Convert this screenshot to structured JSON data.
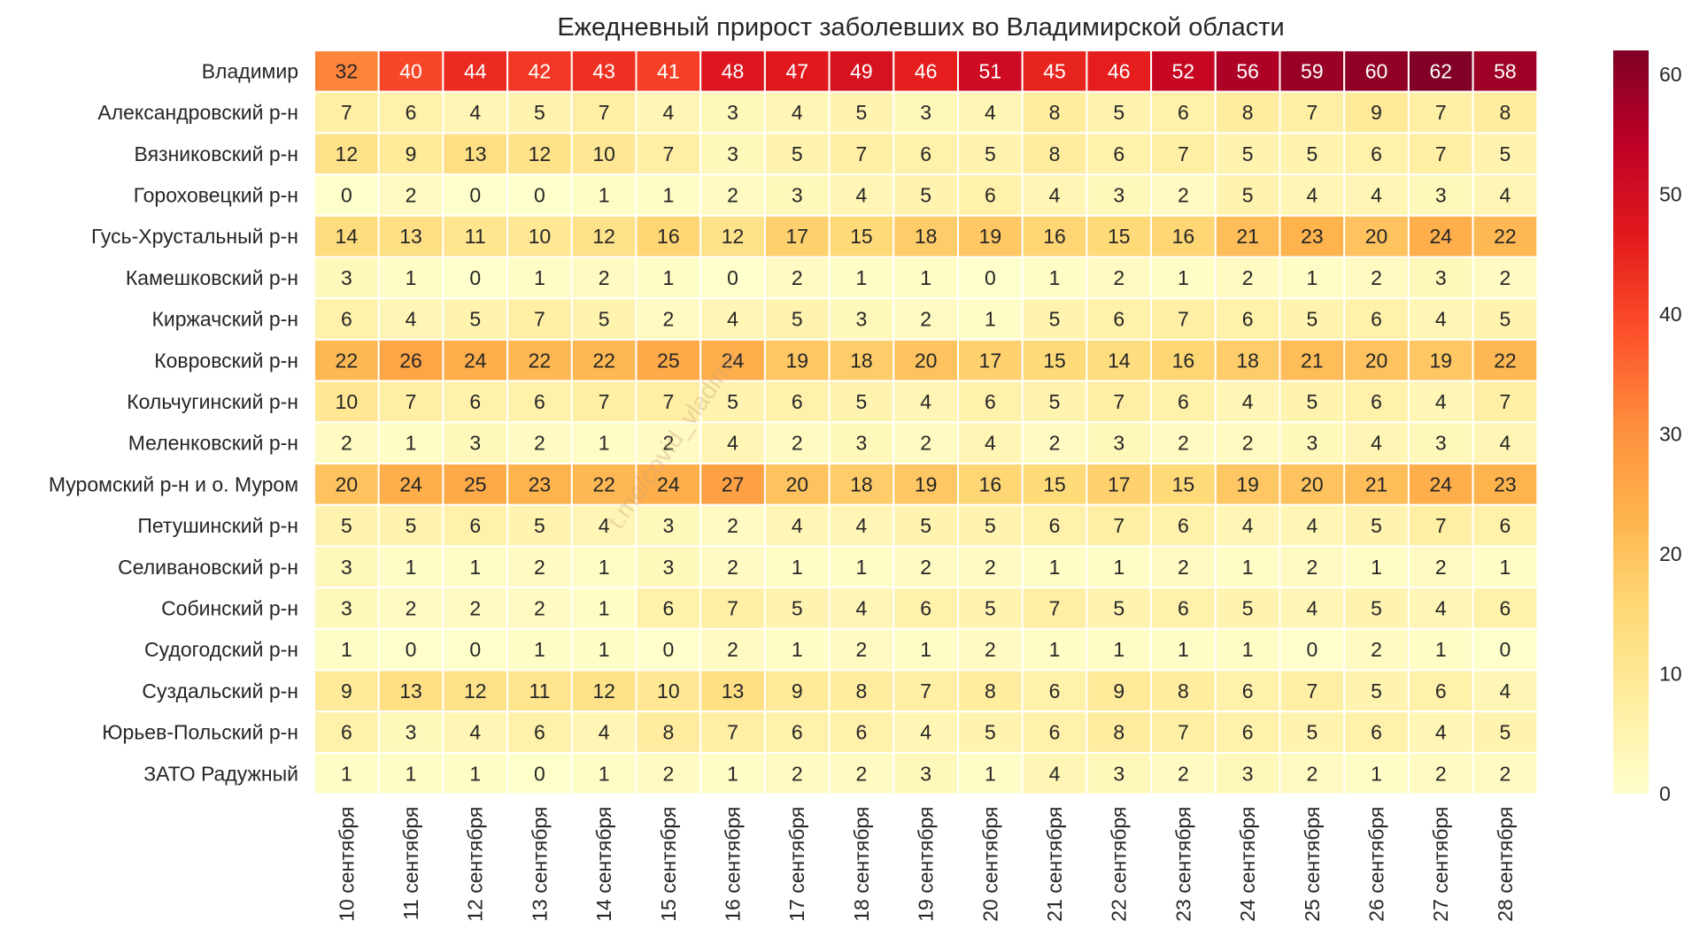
{
  "chart_data": {
    "type": "heatmap",
    "title": "Ежедневный прирост заболевших во Владимирской области",
    "rows": [
      "Владимир",
      "Александровский р-н",
      "Вязниковский р-н",
      "Гороховецкий р-н",
      "Гусь-Хрустальный р-н",
      "Камешковский р-н",
      "Киржачский р-н",
      "Ковровский р-н",
      "Кольчугинский р-н",
      "Меленковский р-н",
      "Муромский р-н и о. Муром",
      "Петушинский р-н",
      "Селивановский р-н",
      "Собинский р-н",
      "Судогодский р-н",
      "Суздальский р-н",
      "Юрьев-Польский р-н",
      "ЗАТО Радужный"
    ],
    "columns": [
      "10 сентября",
      "11 сентября",
      "12 сентября",
      "13 сентября",
      "14 сентября",
      "15 сентября",
      "16 сентября",
      "17 сентября",
      "18 сентября",
      "19 сентября",
      "20 сентября",
      "21 сентября",
      "22 сентября",
      "23 сентября",
      "24 сентября",
      "25 сентября",
      "26 сентября",
      "27 сентября",
      "28 сентября"
    ],
    "values": [
      [
        32,
        40,
        44,
        42,
        43,
        41,
        48,
        47,
        49,
        46,
        51,
        45,
        46,
        52,
        56,
        59,
        60,
        62,
        58
      ],
      [
        7,
        6,
        4,
        5,
        7,
        4,
        3,
        4,
        5,
        3,
        4,
        8,
        5,
        6,
        8,
        7,
        9,
        7,
        8
      ],
      [
        12,
        9,
        13,
        12,
        10,
        7,
        3,
        5,
        7,
        6,
        5,
        8,
        6,
        7,
        5,
        5,
        6,
        7,
        5
      ],
      [
        0,
        2,
        0,
        0,
        1,
        1,
        2,
        3,
        4,
        5,
        6,
        4,
        3,
        2,
        5,
        4,
        4,
        3,
        4
      ],
      [
        14,
        13,
        11,
        10,
        12,
        16,
        12,
        17,
        15,
        18,
        19,
        16,
        15,
        16,
        21,
        23,
        20,
        24,
        22
      ],
      [
        3,
        1,
        0,
        1,
        2,
        1,
        0,
        2,
        1,
        1,
        0,
        1,
        2,
        1,
        2,
        1,
        2,
        3,
        2
      ],
      [
        6,
        4,
        5,
        7,
        5,
        2,
        4,
        5,
        3,
        2,
        1,
        5,
        6,
        7,
        6,
        5,
        6,
        4,
        5
      ],
      [
        22,
        26,
        24,
        22,
        22,
        25,
        24,
        19,
        18,
        20,
        17,
        15,
        14,
        16,
        18,
        21,
        20,
        19,
        22
      ],
      [
        10,
        7,
        6,
        6,
        7,
        7,
        5,
        6,
        5,
        4,
        6,
        5,
        7,
        6,
        4,
        5,
        6,
        4,
        7
      ],
      [
        2,
        1,
        3,
        2,
        1,
        2,
        4,
        2,
        3,
        2,
        4,
        2,
        3,
        2,
        2,
        3,
        4,
        3,
        4
      ],
      [
        20,
        24,
        25,
        23,
        22,
        24,
        27,
        20,
        18,
        19,
        16,
        15,
        17,
        15,
        19,
        20,
        21,
        24,
        23
      ],
      [
        5,
        5,
        6,
        5,
        4,
        3,
        2,
        4,
        4,
        5,
        5,
        6,
        7,
        6,
        4,
        4,
        5,
        7,
        6
      ],
      [
        3,
        1,
        1,
        2,
        1,
        3,
        2,
        1,
        1,
        2,
        2,
        1,
        1,
        2,
        1,
        2,
        1,
        2,
        1
      ],
      [
        3,
        2,
        2,
        2,
        1,
        6,
        7,
        5,
        4,
        6,
        5,
        7,
        5,
        6,
        5,
        4,
        5,
        4,
        6
      ],
      [
        1,
        0,
        0,
        1,
        1,
        0,
        2,
        1,
        2,
        1,
        2,
        1,
        1,
        1,
        1,
        0,
        2,
        1,
        0
      ],
      [
        9,
        13,
        12,
        11,
        12,
        10,
        13,
        9,
        8,
        7,
        8,
        6,
        9,
        8,
        6,
        7,
        5,
        6,
        4
      ],
      [
        6,
        3,
        4,
        6,
        4,
        8,
        7,
        6,
        6,
        4,
        5,
        6,
        8,
        7,
        6,
        5,
        6,
        4,
        5
      ],
      [
        1,
        1,
        1,
        0,
        1,
        2,
        1,
        2,
        2,
        3,
        1,
        4,
        3,
        2,
        3,
        2,
        1,
        2,
        2
      ]
    ],
    "colorbar": {
      "min": 0,
      "max": 62,
      "ticks": [
        0,
        10,
        20,
        30,
        40,
        50,
        60
      ],
      "colormap": "YlOrRd",
      "stops": [
        "#ffffcc",
        "#ffeda0",
        "#fed976",
        "#feb24c",
        "#fd8d3c",
        "#fc4e2a",
        "#e31a1c",
        "#bd0026",
        "#800026"
      ]
    },
    "watermark": "t.me/covid_vladimir",
    "grid": false,
    "legend": "colorbar-right"
  }
}
